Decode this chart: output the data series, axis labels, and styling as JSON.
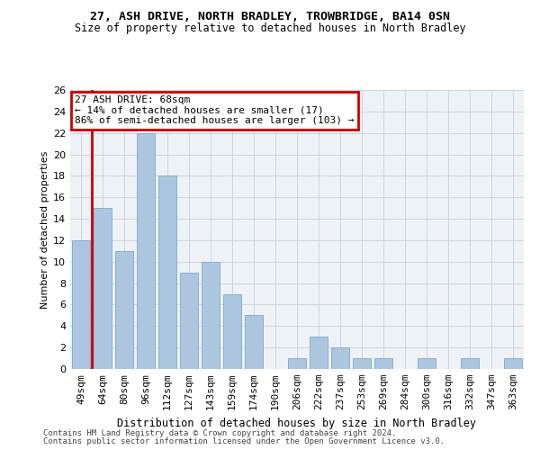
{
  "title1": "27, ASH DRIVE, NORTH BRADLEY, TROWBRIDGE, BA14 0SN",
  "title2": "Size of property relative to detached houses in North Bradley",
  "xlabel": "Distribution of detached houses by size in North Bradley",
  "ylabel": "Number of detached properties",
  "categories": [
    "49sqm",
    "64sqm",
    "80sqm",
    "96sqm",
    "112sqm",
    "127sqm",
    "143sqm",
    "159sqm",
    "174sqm",
    "190sqm",
    "206sqm",
    "222sqm",
    "237sqm",
    "253sqm",
    "269sqm",
    "284sqm",
    "300sqm",
    "316sqm",
    "332sqm",
    "347sqm",
    "363sqm"
  ],
  "values": [
    12,
    15,
    11,
    22,
    18,
    9,
    10,
    7,
    5,
    0,
    1,
    3,
    2,
    1,
    1,
    0,
    1,
    0,
    1,
    0,
    1
  ],
  "bar_color": "#adc6e0",
  "bar_edge_color": "#7aaac8",
  "red_line_x": 0.5,
  "annotation_text_lines": [
    "27 ASH DRIVE: 68sqm",
    "← 14% of detached houses are smaller (17)",
    "86% of semi-detached houses are larger (103) →"
  ],
  "annotation_box_color": "white",
  "annotation_box_edge_color": "#cc0000",
  "ylim": [
    0,
    26
  ],
  "yticks": [
    0,
    2,
    4,
    6,
    8,
    10,
    12,
    14,
    16,
    18,
    20,
    22,
    24,
    26
  ],
  "footer1": "Contains HM Land Registry data © Crown copyright and database right 2024.",
  "footer2": "Contains public sector information licensed under the Open Government Licence v3.0.",
  "bg_color": "#eef2f7",
  "grid_color": "#ccd4de",
  "title1_fontsize": 9.5,
  "title2_fontsize": 8.5,
  "xlabel_fontsize": 8.5,
  "ylabel_fontsize": 8.0,
  "tick_fontsize": 8.0,
  "annot_fontsize": 8.0,
  "footer_fontsize": 6.5
}
